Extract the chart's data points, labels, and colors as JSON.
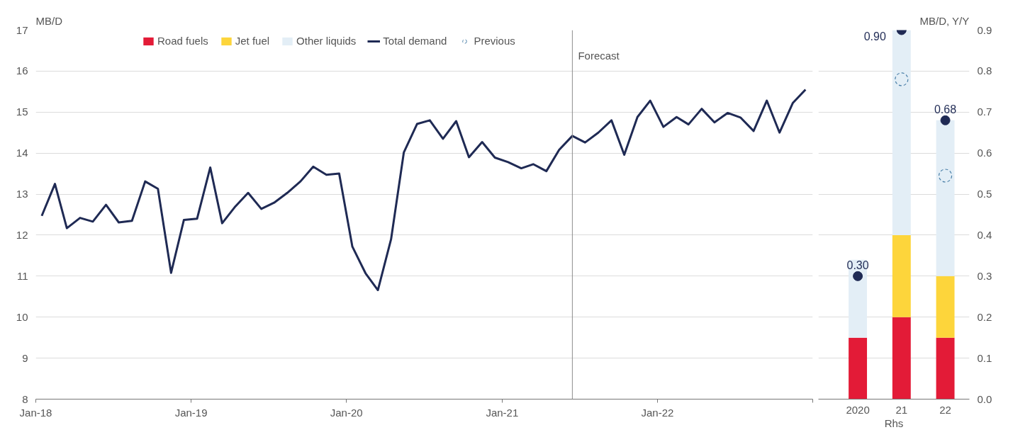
{
  "chart_data": [
    {
      "type": "line",
      "ylabel": "MB/D",
      "x": [
        "2018-01-15",
        "2018-02-15",
        "2018-03-15",
        "2018-04-15",
        "2018-05-15",
        "2018-06-15",
        "2018-07-15",
        "2018-08-15",
        "2018-09-15",
        "2018-10-15",
        "2018-11-15",
        "2018-12-15",
        "2019-01-15",
        "2019-02-15",
        "2019-03-15",
        "2019-04-15",
        "2019-05-15",
        "2019-06-15",
        "2019-07-15",
        "2019-08-15",
        "2019-09-15",
        "2019-10-15",
        "2019-11-15",
        "2019-12-15",
        "2020-01-15",
        "2020-02-15",
        "2020-03-15",
        "2020-04-15",
        "2020-05-15",
        "2020-06-15",
        "2020-07-15",
        "2020-08-15",
        "2020-09-15",
        "2020-10-15",
        "2020-11-15",
        "2020-12-15",
        "2021-01-15",
        "2021-02-15",
        "2021-03-15",
        "2021-04-15",
        "2021-05-15",
        "2021-06-15",
        "2021-07-15",
        "2021-08-15",
        "2021-09-15",
        "2021-10-15",
        "2021-11-15",
        "2021-12-15",
        "2022-01-15",
        "2022-02-15",
        "2022-03-15",
        "2022-04-15",
        "2022-05-15",
        "2022-06-15",
        "2022-07-15",
        "2022-08-15",
        "2022-09-15",
        "2022-10-15",
        "2022-11-15",
        "2022-12-15"
      ],
      "series": [
        {
          "name": "Total demand",
          "color": "#1f2a54",
          "values": [
            12.47,
            13.25,
            12.17,
            12.42,
            12.33,
            12.74,
            12.31,
            12.35,
            13.31,
            13.13,
            11.08,
            12.37,
            12.4,
            13.65,
            12.29,
            12.7,
            13.03,
            12.64,
            12.79,
            13.03,
            13.31,
            13.67,
            13.47,
            13.5,
            11.72,
            11.07,
            10.66,
            11.9,
            14.02,
            14.71,
            14.8,
            14.35,
            14.78,
            13.9,
            14.27,
            13.89,
            13.78,
            13.63,
            13.73,
            13.56,
            14.08,
            14.42,
            14.26,
            14.5,
            14.8,
            13.96,
            14.88,
            15.28,
            14.64,
            14.88,
            14.7,
            15.08,
            14.75,
            14.98,
            14.87,
            14.54,
            15.28,
            14.5,
            15.22,
            15.55
          ]
        }
      ],
      "xlim": [
        "2018-01-01",
        "2023-01-01"
      ],
      "xticks": [
        {
          "value": "2018-01-01",
          "label": "Jan-18"
        },
        {
          "value": "2019-01-01",
          "label": "Jan-19"
        },
        {
          "value": "2020-01-01",
          "label": "Jan-20"
        },
        {
          "value": "2021-01-01",
          "label": "Jan-21"
        },
        {
          "value": "2022-01-01",
          "label": "Jan-22"
        },
        {
          "value": "2023-01-01",
          "label": null
        }
      ],
      "ylim": [
        8,
        17
      ],
      "yticks": [
        8,
        9,
        10,
        11,
        12,
        13,
        14,
        15,
        16,
        17
      ],
      "ref_lines": [
        {
          "axis": "x",
          "value": "2021-06-15",
          "label": "Forecast",
          "color": "#8c8c8c"
        }
      ],
      "grid": "y",
      "legend": "top"
    },
    {
      "type": "bar",
      "stacked": true,
      "categories": [
        "2020",
        "21",
        "22"
      ],
      "xlabel": "Rhs",
      "y2label": "MB/D, Y/Y",
      "series": [
        {
          "name": "Road fuels",
          "color": "#e31b37",
          "axis": "y2",
          "values": [
            0.15,
            0.2,
            0.15
          ]
        },
        {
          "name": "Jet fuel",
          "color": "#fdd53b",
          "axis": "y2",
          "values": [
            0.0,
            0.2,
            0.15
          ]
        },
        {
          "name": "Other liquids",
          "color": "#e3eef6",
          "axis": "y2",
          "values": [
            0.19,
            0.5,
            0.38
          ]
        },
        {
          "type": "scatter",
          "color": "#1f2a54",
          "axis": "y2",
          "marker": "circle",
          "values": [
            0.3,
            0.9,
            0.68
          ],
          "value_labels": [
            "0.30",
            "0.90",
            "0.68"
          ]
        },
        {
          "name": "Previous",
          "type": "scatter",
          "color": "#4a7fa8",
          "axis": "y2",
          "marker": "circle",
          "line_style": "dashed",
          "values": [
            null,
            0.78,
            0.545
          ]
        }
      ],
      "y2lim": [
        0,
        0.9
      ],
      "y2ticks": [
        {
          "value": 0,
          "label": "0.0"
        },
        0.1,
        0.2,
        0.3,
        0.4,
        0.5,
        0.6,
        0.7,
        0.8,
        0.9
      ],
      "grid": "y",
      "legend": "top"
    }
  ]
}
